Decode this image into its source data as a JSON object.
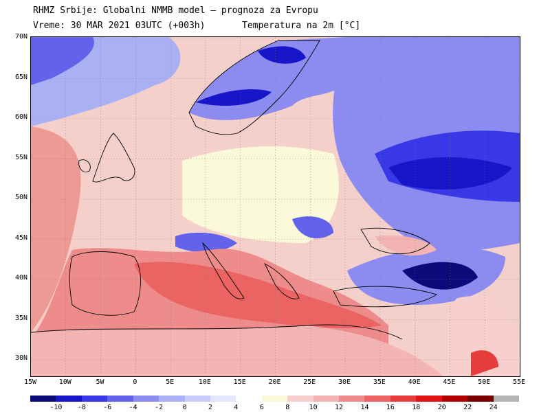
{
  "header": {
    "line1": "RHMZ Srbije: Globalni NMMB model — prognoza za Evropu",
    "line2": "Vreme: 30 MAR 2021 03UTC (+003h)",
    "line3": "Temperatura na 2m [°C]"
  },
  "map": {
    "lat_labels": [
      "70N",
      "65N",
      "60N",
      "55N",
      "50N",
      "45N",
      "40N",
      "35N",
      "30N"
    ],
    "lon_labels": [
      "15W",
      "10W",
      "5W",
      "0",
      "5E",
      "10E",
      "15E",
      "20E",
      "25E",
      "30E",
      "35E",
      "40E",
      "45E",
      "50E",
      "55E"
    ]
  },
  "colorbar": {
    "labels": [
      "-10",
      "-8",
      "-6",
      "-4",
      "-2",
      "0",
      "2",
      "4",
      "6",
      "8",
      "10",
      "12",
      "14",
      "16",
      "18",
      "20",
      "22",
      "24"
    ],
    "colors": [
      "#0a0a7a",
      "#1616c8",
      "#3838e6",
      "#6262ea",
      "#8c8cf0",
      "#aab0f4",
      "#c8ccf8",
      "#e4e6fb",
      "#ffffff",
      "#fbfad8",
      "#f8cfcf",
      "#f3b4b4",
      "#ee8c8c",
      "#ea6464",
      "#e63c3c",
      "#e01414",
      "#b00000",
      "#7a0000",
      "#b4b4b4"
    ]
  }
}
